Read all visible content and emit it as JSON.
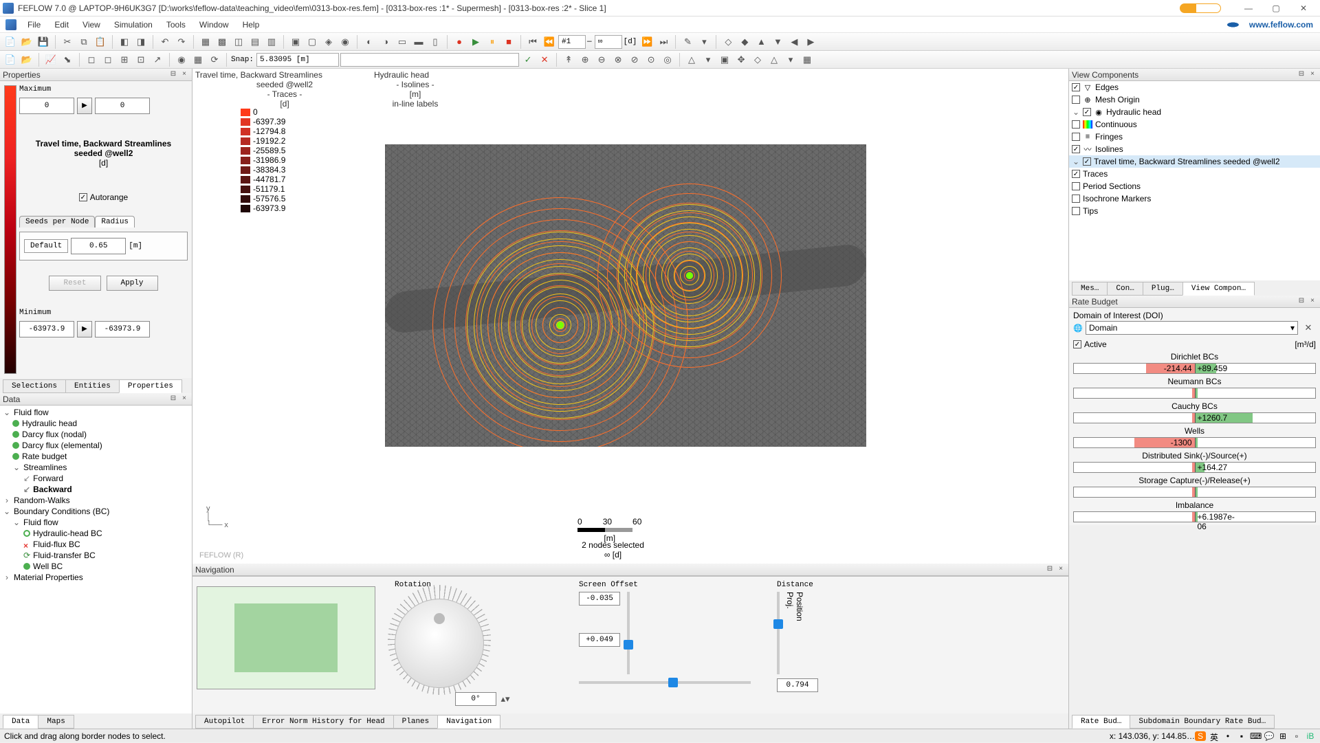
{
  "window": {
    "title": "FEFLOW 7.0 @ LAPTOP-9H6UK3G7 [D:\\works\\feflow-data\\teaching_video\\fem\\0313-box-res.fem] - [0313-box-res :1* - Supermesh] - [0313-box-res :2* - Slice 1]"
  },
  "menu": [
    "File",
    "Edit",
    "View",
    "Simulation",
    "Tools",
    "Window",
    "Help"
  ],
  "brand_link": "www.feflow.com",
  "toolbar2": {
    "snap_label": "Snap:",
    "snap_value": "5.83095 [m]"
  },
  "left": {
    "props_title": "Properties",
    "maximum_label": "Maximum",
    "max_a": "0",
    "max_b": "0",
    "title_line1": "Travel time, Backward Streamlines",
    "title_line2": "seeded @well2",
    "title_unit": "[d]",
    "autorange": "Autorange",
    "tabs": [
      "Seeds per Node",
      "Radius"
    ],
    "default_label": "Default",
    "radius_val": "0.65",
    "radius_unit": "[m]",
    "reset": "Reset",
    "apply": "Apply",
    "minimum_label": "Minimum",
    "min_a": "-63973.9",
    "min_b": "-63973.9",
    "bottom_tabs": [
      "Selections",
      "Entities",
      "Properties"
    ]
  },
  "data_panel": {
    "title": "Data",
    "tree": {
      "fluidflow": "Fluid flow",
      "hh": "Hydraulic head",
      "dfn": "Darcy flux (nodal)",
      "dfe": "Darcy flux (elemental)",
      "rb": "Rate budget",
      "streamlines": "Streamlines",
      "forward": "Forward",
      "backward": "Backward",
      "rw": "Random-Walks",
      "bc": "Boundary Conditions (BC)",
      "ff2": "Fluid flow",
      "hhbc": "Hydraulic-head BC",
      "ffbc": "Fluid-flux BC",
      "ftbc": "Fluid-transfer BC",
      "wbc": "Well BC",
      "mp": "Material Properties"
    },
    "bottom_tabs": [
      "Data",
      "Maps"
    ]
  },
  "center": {
    "header1": "Travel time, Backward Streamlines",
    "header2": "Hydraulic head",
    "sub1": "seeded @well2",
    "sub1b": "- Traces -",
    "sub1c": "[d]",
    "sub2": "- Isolines -",
    "sub2b": "[m]",
    "sub2c": "in-line labels",
    "legend_values": [
      "0",
      "-6397.39",
      "-12794.8",
      "-19192.2",
      "-25589.5",
      "-31986.9",
      "-38384.3",
      "-44781.7",
      "-51179.1",
      "-57576.5",
      "-63973.9"
    ],
    "legend_colors": [
      "#ff3a1a",
      "#e23523",
      "#d03024",
      "#b62a22",
      "#9c241e",
      "#87201b",
      "#701b17",
      "#5b1613",
      "#46110f",
      "#320c0b",
      "#1f0807"
    ],
    "scale_ticks": [
      "0",
      "30",
      "60"
    ],
    "scale_unit": "[m]",
    "selected": "2 nodes selected",
    "inf_unit": "∞ [d]",
    "watermark": "FEFLOW (R)"
  },
  "nav": {
    "title": "Navigation",
    "rotation": "Rotation",
    "rotation_val": "0°",
    "screen_offset": "Screen Offset",
    "offx": "-0.035",
    "offy": "+0.049",
    "distance": "Distance",
    "dist_val": "0.794",
    "position_lbl": "Position",
    "proj_lbl": "Proj.",
    "bottom_tabs": [
      "Autopilot",
      "Error Norm History for Head",
      "Planes",
      "Navigation"
    ]
  },
  "right": {
    "vc_title": "View Components",
    "vc": {
      "edges": "Edges",
      "mesh_origin": "Mesh Origin",
      "hydraulic_head": "Hydraulic head",
      "continuous": "Continuous",
      "fringes": "Fringes",
      "isolines": "Isolines",
      "tt": "Travel time, Backward Streamlines seeded @well2",
      "traces": "Traces",
      "period": "Period Sections",
      "iso_markers": "Isochrone Markers",
      "tips": "Tips"
    },
    "vc_bottom_tabs": [
      "Mes…",
      "Con…",
      "Plug…",
      "View Compon…"
    ],
    "budget_title": "Rate Budget",
    "doi_label": "Domain of Interest (DOI)",
    "doi_value": "Domain",
    "active": "Active",
    "active_unit": "[m³/d]",
    "rows": [
      {
        "label": "Dirichlet BCs",
        "neg": "-214.44",
        "pos": "+89.459",
        "nw": 40,
        "pw": 18
      },
      {
        "label": "Neumann BCs",
        "neg": "",
        "pos": "",
        "nw": 0,
        "pw": 0
      },
      {
        "label": "Cauchy BCs",
        "neg": "",
        "pos": "+1260.7",
        "nw": 0,
        "pw": 48
      },
      {
        "label": "Wells",
        "neg": "-1300",
        "pos": "",
        "nw": 50,
        "pw": 0
      },
      {
        "label": "Distributed Sink(-)/Source(+)",
        "neg": "",
        "pos": "+164.27",
        "nw": 0,
        "pw": 8
      },
      {
        "label": "Storage Capture(-)/Release(+)",
        "neg": "",
        "pos": "",
        "nw": 0,
        "pw": 0
      },
      {
        "label": "Imbalance",
        "neg": "",
        "pos": "+6.1987e-06",
        "nw": 0,
        "pw": 2
      }
    ],
    "budget_bottom_tabs": [
      "Rate Bud…",
      "Subdomain Boundary Rate Bud…"
    ]
  },
  "status": {
    "hint": "Click and drag along border nodes to select.",
    "coords": "x: 143.036, y: 144.85…"
  }
}
